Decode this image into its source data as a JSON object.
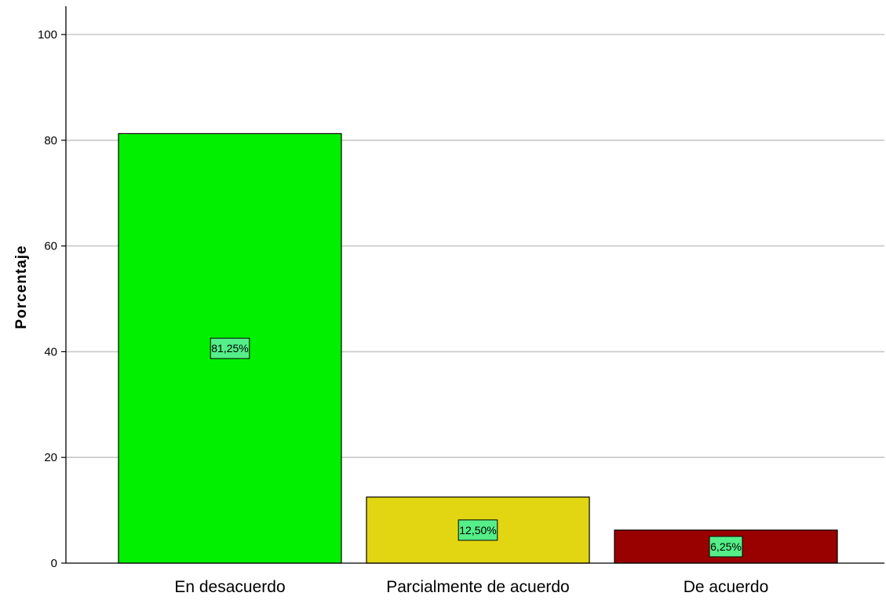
{
  "chart_data": {
    "type": "bar",
    "title": "",
    "xlabel": "",
    "ylabel": "Porcentaje",
    "ylim": [
      0,
      100
    ],
    "yticks": [
      0,
      20,
      40,
      60,
      80,
      100
    ],
    "grid": true,
    "categories": [
      "En desacuerdo",
      "Parcialmente de acuerdo",
      "De acuerdo"
    ],
    "values": [
      81.25,
      12.5,
      6.25
    ],
    "data_labels": [
      "81,25%",
      "12,50%",
      "6,25%"
    ],
    "bar_colors": [
      "#00f000",
      "#e2d612",
      "#990000"
    ],
    "label_box_color": "#55ee88"
  }
}
